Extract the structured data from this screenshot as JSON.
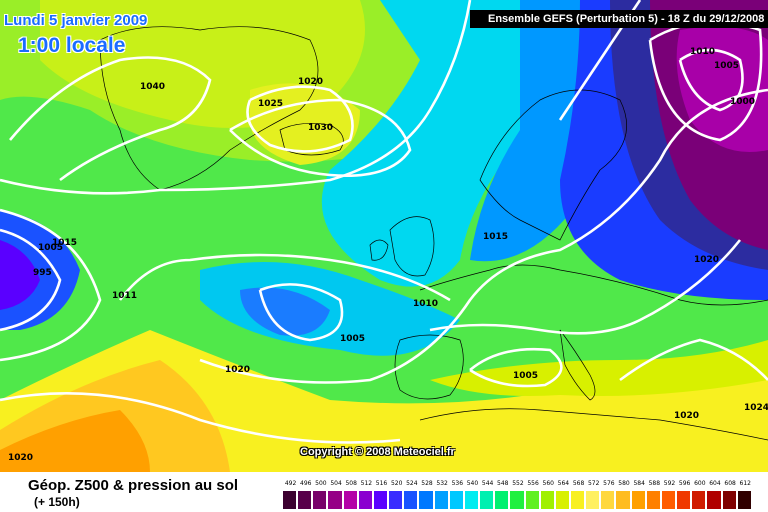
{
  "header": {
    "date_line": "Lundi 5 janvier 2009",
    "time_line": "1:00 locale",
    "run_info": "Ensemble GEFS (Perturbation 5)  -  18 Z du 29/12/2008"
  },
  "map": {
    "copyright": "Copyright © 2008 Meteociel.fr",
    "isobar_labels": [
      "1040",
      "1020",
      "1025",
      "1030",
      "1005",
      "1015",
      "1011",
      "995",
      "1005",
      "1010",
      "1005",
      "1015",
      "1020",
      "1010",
      "1005",
      "1000",
      "1020",
      "1020",
      "1020",
      "1024"
    ]
  },
  "legend": {
    "title": "Géop. Z500 & pression au sol",
    "subtitle": "(+ 150h)",
    "scale_values": [
      "492",
      "496",
      "500",
      "504",
      "508",
      "512",
      "516",
      "520",
      "524",
      "528",
      "532",
      "536",
      "540",
      "544",
      "548",
      "552",
      "556",
      "560",
      "564",
      "568",
      "572",
      "576",
      "580",
      "584",
      "588",
      "592",
      "596",
      "600",
      "604",
      "608",
      "612"
    ],
    "scale_colors": [
      "#3c0030",
      "#58004a",
      "#78006a",
      "#960086",
      "#b400a8",
      "#8a00d0",
      "#5a00ff",
      "#3a2cff",
      "#1a52ff",
      "#0078ff",
      "#00a0ff",
      "#00c8ff",
      "#00ecf0",
      "#00f0b0",
      "#00f070",
      "#20f040",
      "#60f020",
      "#a0f000",
      "#d8f000",
      "#f8f020",
      "#fff060",
      "#ffd840",
      "#ffbc20",
      "#ffa000",
      "#ff8000",
      "#ff5c00",
      "#f03800",
      "#d01c00",
      "#b00000",
      "#800000",
      "#300000"
    ]
  }
}
